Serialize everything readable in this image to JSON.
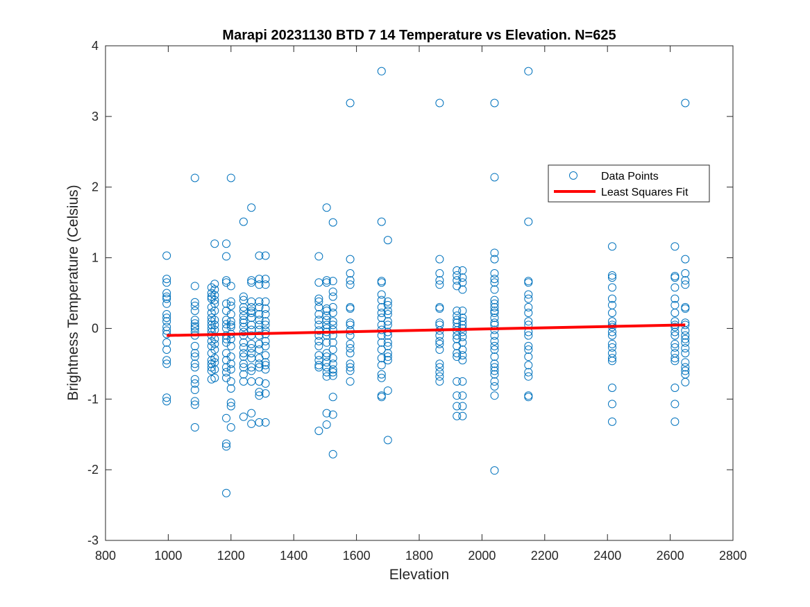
{
  "chart_data": {
    "type": "scatter",
    "title": "Marapi 20231130 BTD 7 14 Temperature vs Elevation. N=625",
    "xlabel": "Elevation",
    "ylabel": "Brightness Temperature (Celsius)",
    "xlim": [
      800,
      2800
    ],
    "ylim": [
      -3,
      4
    ],
    "xticks": [
      800,
      1000,
      1200,
      1400,
      1600,
      1800,
      2000,
      2200,
      2400,
      2600,
      2800
    ],
    "yticks": [
      -3,
      -2,
      -1,
      0,
      1,
      2,
      3,
      4
    ],
    "grid": false,
    "legend_position": "top-right",
    "colors": {
      "points": "#0072BD",
      "fit": "#FF0000"
    },
    "series": [
      {
        "name": "Data Points",
        "kind": "scatter",
        "columns": [
          {
            "x": 995,
            "y": [
              1.03,
              0.7,
              0.65,
              0.5,
              0.45,
              0.42,
              0.35,
              0.2,
              0.15,
              0.1,
              0.02,
              -0.03,
              -0.08,
              -0.2,
              -0.3,
              -0.45,
              -0.5,
              -0.98,
              -1.03
            ]
          },
          {
            "x": 1085,
            "y": [
              2.13,
              0.6,
              0.37,
              0.32,
              0.25,
              0.12,
              0.07,
              0.03,
              0.0,
              -0.05,
              -0.1,
              -0.25,
              -0.35,
              -0.4,
              -0.5,
              -0.55,
              -0.72,
              -0.78,
              -0.87,
              -1.03,
              -1.08,
              -1.4
            ]
          },
          {
            "x": 1138,
            "y": [
              0.58,
              0.5,
              0.45,
              0.42,
              0.3,
              0.22,
              0.15,
              0.1,
              0.05,
              0.0,
              -0.05,
              -0.1,
              -0.18,
              -0.25,
              -0.35,
              -0.45,
              -0.5,
              -0.55,
              -0.6,
              -0.72
            ]
          },
          {
            "x": 1148,
            "y": [
              1.2,
              0.63,
              0.55,
              0.47,
              0.4,
              0.35,
              0.25,
              0.12,
              0.05,
              -0.02,
              -0.15,
              -0.22,
              -0.3,
              -0.42,
              -0.48,
              -0.58,
              -0.7
            ]
          },
          {
            "x": 1185,
            "y": [
              1.2,
              1.02,
              0.68,
              0.65,
              0.35,
              0.25,
              0.12,
              0.06,
              0.0,
              -0.1,
              -0.15,
              -0.2,
              -0.35,
              -0.45,
              -0.55,
              -0.62,
              -0.7,
              -1.27,
              -1.63,
              -1.67,
              -2.33
            ]
          },
          {
            "x": 1200,
            "y": [
              2.13,
              0.6,
              0.38,
              0.32,
              0.2,
              0.1,
              0.05,
              0.02,
              -0.08,
              -0.15,
              -0.25,
              -0.4,
              -0.5,
              -0.58,
              -0.75,
              -0.85,
              -1.05,
              -1.1,
              -1.4
            ]
          },
          {
            "x": 1240,
            "y": [
              1.51,
              0.45,
              0.4,
              0.3,
              0.25,
              0.18,
              0.12,
              0.08,
              0.02,
              -0.05,
              -0.1,
              -0.2,
              -0.27,
              -0.35,
              -0.4,
              -0.5,
              -0.55,
              -0.65,
              -0.75,
              -1.25
            ]
          },
          {
            "x": 1265,
            "y": [
              1.71,
              0.68,
              0.65,
              0.38,
              0.3,
              0.25,
              0.22,
              0.15,
              0.05,
              -0.02,
              -0.1,
              -0.22,
              -0.28,
              -0.35,
              -0.42,
              -0.55,
              -0.6,
              -0.75,
              -1.2,
              -1.35
            ]
          },
          {
            "x": 1290,
            "y": [
              1.03,
              0.7,
              0.62,
              0.38,
              0.3,
              0.2,
              0.12,
              0.05,
              -0.02,
              -0.1,
              -0.22,
              -0.3,
              -0.42,
              -0.5,
              -0.55,
              -0.75,
              -0.9,
              -0.95,
              -1.33
            ]
          },
          {
            "x": 1310,
            "y": [
              1.03,
              0.7,
              0.62,
              0.38,
              0.28,
              0.2,
              0.1,
              0.05,
              -0.03,
              -0.08,
              -0.18,
              -0.25,
              -0.38,
              -0.48,
              -0.52,
              -0.58,
              -0.78,
              -0.92,
              -1.33
            ]
          },
          {
            "x": 1480,
            "y": [
              1.02,
              0.65,
              0.42,
              0.38,
              0.3,
              0.2,
              0.12,
              0.05,
              -0.03,
              -0.1,
              -0.18,
              -0.25,
              -0.38,
              -0.45,
              -0.52,
              -0.55,
              -1.45
            ]
          },
          {
            "x": 1505,
            "y": [
              1.71,
              0.68,
              0.65,
              0.28,
              0.25,
              0.18,
              0.12,
              0.05,
              0.0,
              -0.05,
              -0.1,
              -0.2,
              -0.35,
              -0.4,
              -0.48,
              -0.55,
              -0.62,
              -0.68,
              -1.2,
              -1.36
            ]
          },
          {
            "x": 1525,
            "y": [
              1.5,
              0.67,
              0.52,
              0.45,
              0.3,
              0.22,
              0.1,
              0.05,
              -0.02,
              -0.1,
              -0.2,
              -0.3,
              -0.42,
              -0.5,
              -0.58,
              -0.62,
              -0.67,
              -0.97,
              -1.22,
              -1.78
            ]
          },
          {
            "x": 1580,
            "y": [
              3.19,
              0.98,
              0.78,
              0.68,
              0.62,
              0.3,
              0.28,
              0.08,
              0.05,
              -0.03,
              -0.1,
              -0.22,
              -0.28,
              -0.35,
              -0.5,
              -0.55,
              -0.6,
              -0.75
            ]
          },
          {
            "x": 1680,
            "y": [
              3.64,
              1.51,
              0.67,
              0.65,
              0.48,
              0.4,
              0.3,
              0.22,
              0.15,
              0.05,
              -0.02,
              -0.1,
              -0.2,
              -0.3,
              -0.42,
              -0.52,
              -0.65,
              -0.7,
              -0.95,
              -0.97
            ]
          },
          {
            "x": 1700,
            "y": [
              1.25,
              0.38,
              0.33,
              0.25,
              0.2,
              0.1,
              0.05,
              -0.05,
              -0.1,
              -0.2,
              -0.25,
              -0.35,
              -0.4,
              -0.45,
              -0.88,
              -1.58
            ]
          },
          {
            "x": 1865,
            "y": [
              3.19,
              0.98,
              0.78,
              0.68,
              0.62,
              0.3,
              0.28,
              0.08,
              0.05,
              -0.03,
              -0.1,
              -0.18,
              -0.22,
              -0.3,
              -0.5,
              -0.55,
              -0.62,
              -0.68,
              -0.75
            ]
          },
          {
            "x": 1920,
            "y": [
              0.82,
              0.75,
              0.68,
              0.6,
              0.25,
              0.18,
              0.12,
              0.08,
              0.02,
              -0.03,
              -0.1,
              -0.15,
              -0.25,
              -0.35,
              -0.4,
              -0.75,
              -0.95,
              -1.1,
              -1.24
            ]
          },
          {
            "x": 1938,
            "y": [
              0.82,
              0.72,
              0.65,
              0.55,
              0.25,
              0.15,
              0.1,
              0.05,
              0.0,
              -0.05,
              -0.12,
              -0.2,
              -0.3,
              -0.38,
              -0.45,
              -0.75,
              -0.95,
              -1.1,
              -1.24
            ]
          },
          {
            "x": 2040,
            "y": [
              3.19,
              2.14,
              1.07,
              0.98,
              0.78,
              0.7,
              0.65,
              0.55,
              0.4,
              0.35,
              0.3,
              0.25,
              0.22,
              0.15,
              0.08,
              0.05,
              -0.02,
              -0.1,
              -0.18,
              -0.25,
              -0.3,
              -0.4,
              -0.5,
              -0.55,
              -0.6,
              -0.65,
              -0.75,
              -0.82,
              -0.95,
              -2.01
            ]
          },
          {
            "x": 2148,
            "y": [
              3.64,
              1.51,
              0.67,
              0.65,
              0.48,
              0.42,
              0.3,
              0.22,
              0.1,
              0.05,
              -0.05,
              -0.1,
              -0.25,
              -0.3,
              -0.4,
              -0.52,
              -0.62,
              -0.68,
              -0.95,
              -0.97
            ]
          },
          {
            "x": 2415,
            "y": [
              1.16,
              0.75,
              0.72,
              0.58,
              0.42,
              0.33,
              0.22,
              0.1,
              0.05,
              0.02,
              -0.05,
              -0.1,
              -0.22,
              -0.27,
              -0.35,
              -0.42,
              -0.46,
              -0.84,
              -1.07,
              -1.32
            ]
          },
          {
            "x": 2615,
            "y": [
              1.16,
              0.74,
              0.72,
              0.58,
              0.42,
              0.33,
              0.22,
              0.1,
              0.05,
              0.02,
              -0.05,
              -0.1,
              -0.22,
              -0.27,
              -0.35,
              -0.42,
              -0.46,
              -0.84,
              -1.07,
              -1.32
            ]
          },
          {
            "x": 2648,
            "y": [
              3.19,
              0.98,
              0.78,
              0.68,
              0.62,
              0.3,
              0.28,
              0.08,
              0.05,
              -0.03,
              -0.1,
              -0.15,
              -0.2,
              -0.28,
              -0.35,
              -0.48,
              -0.55,
              -0.6,
              -0.65,
              -0.76
            ]
          }
        ]
      },
      {
        "name": "Least Squares Fit",
        "kind": "line",
        "x": [
          995,
          2648
        ],
        "y": [
          -0.1,
          0.05
        ]
      }
    ]
  }
}
